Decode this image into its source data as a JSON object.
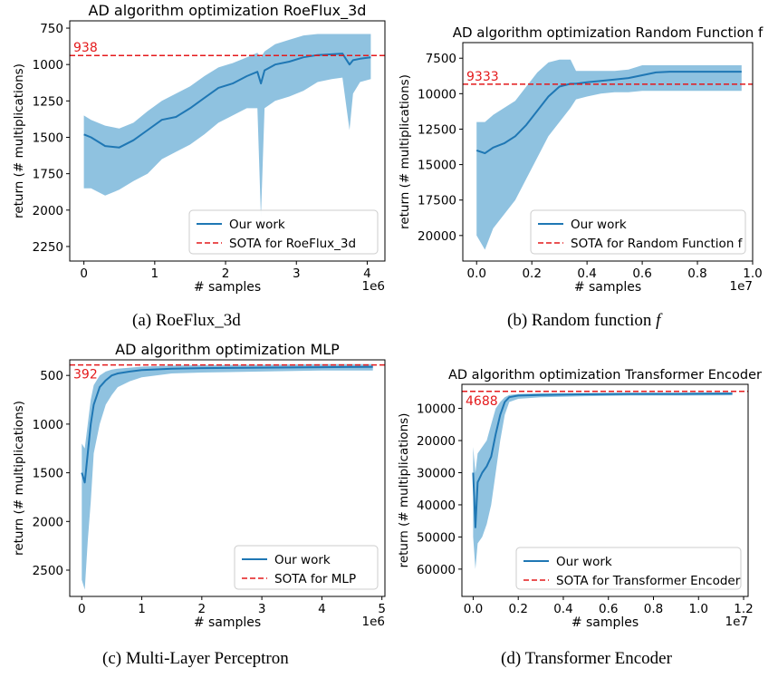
{
  "figure": {
    "captions": [
      {
        "prefix": "(a) ",
        "text": "RoeFlux_3d"
      },
      {
        "prefix": "(b) ",
        "text": "Random function ",
        "math": "f"
      },
      {
        "prefix": "(c) ",
        "text": "Multi-Layer Perceptron"
      },
      {
        "prefix": "(d) ",
        "text": "Transformer Encoder"
      }
    ],
    "colors": {
      "line": "#1f77b4",
      "band": "#6aaed6",
      "sota": "#e41a1c"
    }
  },
  "chart_data": [
    {
      "type": "line",
      "title": "AD algorithm optimization RoeFlux_3d",
      "xlabel": "# samples",
      "ylabel": "return (# multiplications)",
      "x_scale_label": "1e6",
      "xlim": [
        -0.2,
        4.25
      ],
      "ylim": [
        2350,
        700
      ],
      "y_inverted": true,
      "xticks": [
        0,
        1,
        2,
        3,
        4
      ],
      "xtick_labels": [
        "0",
        "1",
        "2",
        "3",
        "4"
      ],
      "yticks": [
        750,
        1000,
        1250,
        1500,
        1750,
        2000,
        2250
      ],
      "ytick_labels": [
        "750",
        "1000",
        "1250",
        "1500",
        "1750",
        "2000",
        "2250"
      ],
      "sota": {
        "value": 938,
        "label": "938"
      },
      "legend": {
        "position": "lower right",
        "entries": [
          "Our work",
          "SOTA for RoeFlux_3d"
        ]
      },
      "series": [
        {
          "name": "Our work",
          "x": [
            0,
            0.1,
            0.3,
            0.5,
            0.7,
            0.9,
            1.1,
            1.3,
            1.5,
            1.7,
            1.9,
            2.1,
            2.3,
            2.45,
            2.5,
            2.55,
            2.7,
            2.9,
            3.1,
            3.3,
            3.5,
            3.65,
            3.75,
            3.8,
            3.9,
            4.05
          ],
          "y": [
            1480,
            1500,
            1560,
            1570,
            1520,
            1450,
            1380,
            1360,
            1300,
            1230,
            1160,
            1130,
            1080,
            1050,
            1130,
            1040,
            1000,
            980,
            950,
            935,
            930,
            925,
            1000,
            970,
            960,
            950
          ],
          "band_upper": [
            1350,
            1380,
            1420,
            1440,
            1400,
            1320,
            1250,
            1200,
            1150,
            1080,
            1020,
            990,
            950,
            920,
            950,
            910,
            860,
            830,
            800,
            790,
            790,
            790,
            790,
            790,
            790,
            790
          ],
          "band_lower": [
            1850,
            1850,
            1900,
            1860,
            1800,
            1750,
            1650,
            1600,
            1550,
            1480,
            1400,
            1350,
            1300,
            1300,
            2050,
            1300,
            1250,
            1220,
            1180,
            1120,
            1100,
            1090,
            1450,
            1200,
            1120,
            1100
          ]
        }
      ]
    },
    {
      "type": "line",
      "title": "AD algorithm optimization Random Function f",
      "xlabel": "# samples",
      "ylabel": "return (# multiplications)",
      "x_scale_label": "1e7",
      "xlim": [
        -0.05,
        1.0
      ],
      "ylim": [
        21800,
        6400
      ],
      "y_inverted": true,
      "xticks": [
        0,
        0.2,
        0.4,
        0.6,
        0.8,
        1.0
      ],
      "xtick_labels": [
        "0.0",
        "0.2",
        "0.4",
        "0.6",
        "0.8",
        "1.0"
      ],
      "yticks": [
        7500,
        10000,
        12500,
        15000,
        17500,
        20000
      ],
      "ytick_labels": [
        "7500",
        "10000",
        "12500",
        "15000",
        "17500",
        "20000"
      ],
      "sota": {
        "value": 9333,
        "label": "9333"
      },
      "legend": {
        "position": "lower right",
        "entries": [
          "Our work",
          "SOTA for Random Function f"
        ]
      },
      "series": [
        {
          "name": "Our work",
          "x": [
            0,
            0.03,
            0.06,
            0.1,
            0.14,
            0.18,
            0.22,
            0.26,
            0.3,
            0.34,
            0.36,
            0.4,
            0.45,
            0.5,
            0.55,
            0.6,
            0.65,
            0.7,
            0.8,
            0.9,
            0.96
          ],
          "y": [
            14000,
            14200,
            13800,
            13500,
            13000,
            12200,
            11200,
            10200,
            9500,
            9300,
            9300,
            9200,
            9100,
            9000,
            8900,
            8700,
            8500,
            8450,
            8450,
            8450,
            8450
          ],
          "band_upper": [
            12000,
            12000,
            11500,
            11000,
            10500,
            9500,
            8500,
            7800,
            7600,
            7600,
            8400,
            8400,
            8400,
            8400,
            8300,
            8000,
            8000,
            8000,
            8000,
            8000,
            8000
          ],
          "band_lower": [
            20000,
            21000,
            19500,
            18500,
            17500,
            16000,
            14500,
            13000,
            12000,
            11000,
            10400,
            10200,
            10000,
            9900,
            9900,
            9800,
            9800,
            9800,
            9800,
            9800,
            9800
          ]
        }
      ]
    },
    {
      "type": "line",
      "title": "AD algorithm optimization MLP",
      "xlabel": "# samples",
      "ylabel": "return (# multiplications)",
      "x_scale_label": "1e6",
      "xlim": [
        -0.2,
        5.05
      ],
      "ylim": [
        2770,
        340
      ],
      "y_inverted": true,
      "xticks": [
        0,
        1,
        2,
        3,
        4,
        5
      ],
      "xtick_labels": [
        "0",
        "1",
        "2",
        "3",
        "4",
        "5"
      ],
      "yticks": [
        500,
        1000,
        1500,
        2000,
        2500
      ],
      "ytick_labels": [
        "500",
        "1000",
        "1500",
        "2000",
        "2500"
      ],
      "sota": {
        "value": 392,
        "label": "392"
      },
      "legend": {
        "position": "lower right",
        "entries": [
          "Our work",
          "SOTA for MLP"
        ]
      },
      "series": [
        {
          "name": "Our work",
          "x": [
            0,
            0.05,
            0.1,
            0.15,
            0.2,
            0.3,
            0.4,
            0.5,
            0.6,
            0.8,
            1.0,
            1.5,
            2.0,
            3.0,
            4.0,
            4.85
          ],
          "y": [
            1500,
            1600,
            1300,
            1000,
            800,
            620,
            550,
            500,
            480,
            460,
            445,
            430,
            425,
            420,
            415,
            412
          ],
          "band_upper": [
            1200,
            1250,
            1000,
            750,
            600,
            500,
            460,
            440,
            430,
            420,
            410,
            400,
            395,
            390,
            385,
            385
          ],
          "band_lower": [
            2600,
            2700,
            2200,
            1800,
            1300,
            1000,
            800,
            700,
            620,
            560,
            520,
            480,
            470,
            460,
            450,
            450
          ]
        }
      ]
    },
    {
      "type": "line",
      "title": "AD algorithm optimization Transformer Encoder",
      "xlabel": "# samples",
      "ylabel": "return (# multiplications)",
      "x_scale_label": "1e7",
      "xlim": [
        -0.05,
        1.22
      ],
      "ylim": [
        68500,
        2500
      ],
      "y_inverted": true,
      "xticks": [
        0,
        0.2,
        0.4,
        0.6,
        0.8,
        1.0,
        1.2
      ],
      "xtick_labels": [
        "0.0",
        "0.2",
        "0.4",
        "0.6",
        "0.8",
        "1.0",
        "1.2"
      ],
      "yticks": [
        10000,
        20000,
        30000,
        40000,
        50000,
        60000
      ],
      "ytick_labels": [
        "10000",
        "20000",
        "30000",
        "40000",
        "50000",
        "60000"
      ],
      "sota": {
        "value": 4688,
        "label": "4688"
      },
      "legend": {
        "position": "lower right",
        "entries": [
          "Our work",
          "SOTA for Transformer Encoder"
        ]
      },
      "series": [
        {
          "name": "Our work",
          "x": [
            0,
            0.01,
            0.02,
            0.04,
            0.06,
            0.08,
            0.1,
            0.12,
            0.14,
            0.16,
            0.2,
            0.3,
            0.5,
            0.7,
            0.9,
            1.15
          ],
          "y": [
            30000,
            47000,
            33000,
            30000,
            28000,
            25000,
            18000,
            12000,
            8000,
            6500,
            6000,
            5800,
            5600,
            5500,
            5500,
            5400
          ],
          "band_upper": [
            22000,
            30000,
            24000,
            22000,
            20000,
            15000,
            10000,
            8000,
            6500,
            5800,
            5500,
            5300,
            5200,
            5100,
            5100,
            5000
          ],
          "band_lower": [
            50000,
            60000,
            52000,
            50000,
            46000,
            40000,
            30000,
            20000,
            12000,
            8000,
            7000,
            6500,
            6200,
            6000,
            6000,
            5900
          ]
        }
      ]
    }
  ]
}
